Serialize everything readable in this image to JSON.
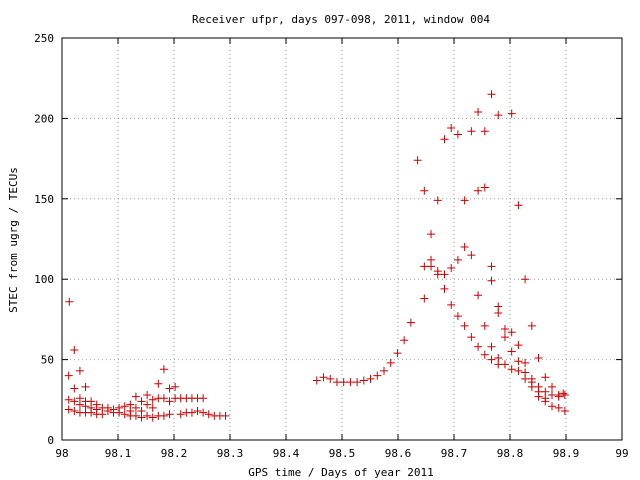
{
  "chart_data": {
    "type": "scatter",
    "title": "Receiver ufpr, days 097-098, 2011, window 004",
    "xlabel": "GPS time / Days of year 2011",
    "ylabel": "STEC from ugrg / TECUs",
    "xlim": [
      98,
      99
    ],
    "ylim": [
      0,
      250
    ],
    "xticks": [
      "98",
      "98.1",
      "98.2",
      "98.3",
      "98.4",
      "98.5",
      "98.6",
      "98.7",
      "98.8",
      "98.9",
      "99"
    ],
    "yticks": [
      "0",
      "50",
      "100",
      "150",
      "200",
      "250"
    ],
    "grid": true,
    "legend": "none",
    "marker": "plus",
    "color": "#cc0000",
    "points": [
      [
        98.013,
        86
      ],
      [
        98.012,
        40
      ],
      [
        98.012,
        25
      ],
      [
        98.012,
        19
      ],
      [
        98.022,
        56
      ],
      [
        98.022,
        32
      ],
      [
        98.022,
        24
      ],
      [
        98.022,
        18
      ],
      [
        98.032,
        43
      ],
      [
        98.032,
        26
      ],
      [
        98.032,
        22
      ],
      [
        98.032,
        17
      ],
      [
        98.042,
        33
      ],
      [
        98.042,
        24
      ],
      [
        98.042,
        21
      ],
      [
        98.042,
        17
      ],
      [
        98.052,
        24
      ],
      [
        98.052,
        20
      ],
      [
        98.052,
        17
      ],
      [
        98.062,
        22
      ],
      [
        98.062,
        19
      ],
      [
        98.062,
        16
      ],
      [
        98.072,
        20
      ],
      [
        98.072,
        16
      ],
      [
        98.082,
        20
      ],
      [
        98.082,
        18
      ],
      [
        98.092,
        19
      ],
      [
        98.092,
        17
      ],
      [
        98.102,
        20
      ],
      [
        98.102,
        17
      ],
      [
        98.112,
        21
      ],
      [
        98.112,
        16
      ],
      [
        98.122,
        22
      ],
      [
        98.122,
        18
      ],
      [
        98.122,
        15
      ],
      [
        98.132,
        27
      ],
      [
        98.132,
        20
      ],
      [
        98.132,
        15
      ],
      [
        98.142,
        24
      ],
      [
        98.142,
        18
      ],
      [
        98.142,
        14
      ],
      [
        98.152,
        28
      ],
      [
        98.152,
        22
      ],
      [
        98.152,
        15
      ],
      [
        98.162,
        25
      ],
      [
        98.162,
        20
      ],
      [
        98.162,
        14
      ],
      [
        98.172,
        35
      ],
      [
        98.172,
        26
      ],
      [
        98.172,
        15
      ],
      [
        98.182,
        44
      ],
      [
        98.182,
        26
      ],
      [
        98.182,
        15
      ],
      [
        98.192,
        32
      ],
      [
        98.192,
        24
      ],
      [
        98.192,
        16
      ],
      [
        98.202,
        33
      ],
      [
        98.202,
        26
      ],
      [
        98.212,
        26
      ],
      [
        98.212,
        16
      ],
      [
        98.222,
        26
      ],
      [
        98.222,
        17
      ],
      [
        98.232,
        26
      ],
      [
        98.232,
        17
      ],
      [
        98.242,
        26
      ],
      [
        98.242,
        18
      ],
      [
        98.252,
        26
      ],
      [
        98.252,
        17
      ],
      [
        98.262,
        16
      ],
      [
        98.272,
        15
      ],
      [
        98.282,
        15
      ],
      [
        98.292,
        15
      ],
      [
        98.455,
        37
      ],
      [
        98.467,
        39
      ],
      [
        98.479,
        38
      ],
      [
        98.491,
        36
      ],
      [
        98.503,
        36
      ],
      [
        98.515,
        36
      ],
      [
        98.527,
        36
      ],
      [
        98.539,
        37
      ],
      [
        98.551,
        38
      ],
      [
        98.563,
        40
      ],
      [
        98.575,
        43
      ],
      [
        98.587,
        48
      ],
      [
        98.599,
        54
      ],
      [
        98.611,
        62
      ],
      [
        98.623,
        73
      ],
      [
        98.635,
        174
      ],
      [
        98.647,
        155
      ],
      [
        98.647,
        108
      ],
      [
        98.647,
        88
      ],
      [
        98.659,
        128
      ],
      [
        98.659,
        112
      ],
      [
        98.659,
        108
      ],
      [
        98.671,
        149
      ],
      [
        98.671,
        105
      ],
      [
        98.671,
        103
      ],
      [
        98.683,
        187
      ],
      [
        98.683,
        103
      ],
      [
        98.683,
        94
      ],
      [
        98.695,
        194
      ],
      [
        98.695,
        107
      ],
      [
        98.695,
        84
      ],
      [
        98.707,
        190
      ],
      [
        98.707,
        112
      ],
      [
        98.707,
        77
      ],
      [
        98.719,
        149
      ],
      [
        98.719,
        120
      ],
      [
        98.719,
        71
      ],
      [
        98.731,
        192
      ],
      [
        98.731,
        115
      ],
      [
        98.731,
        64
      ],
      [
        98.743,
        204
      ],
      [
        98.743,
        155
      ],
      [
        98.743,
        90
      ],
      [
        98.743,
        58
      ],
      [
        98.755,
        192
      ],
      [
        98.755,
        157
      ],
      [
        98.755,
        71
      ],
      [
        98.755,
        53
      ],
      [
        98.767,
        215
      ],
      [
        98.767,
        108
      ],
      [
        98.767,
        99
      ],
      [
        98.767,
        58
      ],
      [
        98.767,
        50
      ],
      [
        98.779,
        202
      ],
      [
        98.779,
        83
      ],
      [
        98.779,
        79
      ],
      [
        98.779,
        51
      ],
      [
        98.779,
        47
      ],
      [
        98.791,
        69
      ],
      [
        98.791,
        64
      ],
      [
        98.791,
        47
      ],
      [
        98.803,
        203
      ],
      [
        98.803,
        67
      ],
      [
        98.803,
        55
      ],
      [
        98.803,
        44
      ],
      [
        98.815,
        146
      ],
      [
        98.815,
        59
      ],
      [
        98.815,
        49
      ],
      [
        98.815,
        43
      ],
      [
        98.827,
        100
      ],
      [
        98.827,
        48
      ],
      [
        98.827,
        42
      ],
      [
        98.827,
        38
      ],
      [
        98.839,
        71
      ],
      [
        98.839,
        38
      ],
      [
        98.839,
        36
      ],
      [
        98.839,
        33
      ],
      [
        98.851,
        51
      ],
      [
        98.851,
        33
      ],
      [
        98.851,
        30
      ],
      [
        98.851,
        27
      ],
      [
        98.863,
        39
      ],
      [
        98.863,
        30
      ],
      [
        98.863,
        26
      ],
      [
        98.863,
        24
      ],
      [
        98.875,
        33
      ],
      [
        98.875,
        28
      ],
      [
        98.875,
        21
      ],
      [
        98.887,
        28
      ],
      [
        98.887,
        27
      ],
      [
        98.887,
        20
      ],
      [
        98.895,
        29
      ],
      [
        98.898,
        28
      ],
      [
        98.898,
        18
      ]
    ]
  }
}
